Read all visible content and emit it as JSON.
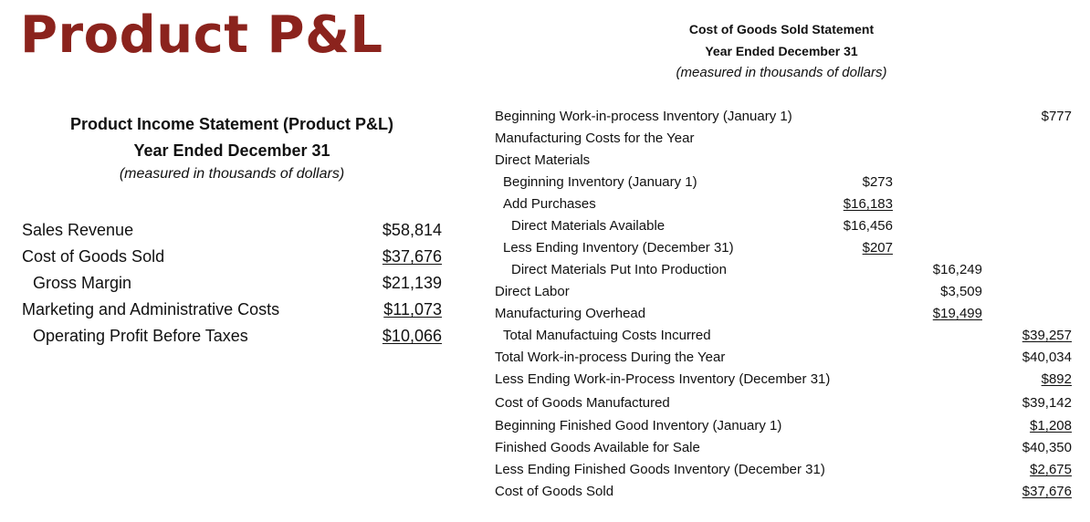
{
  "page_title": "Product P&L",
  "income_statement": {
    "heading": "Product Income Statement (Product P&L)",
    "period": "Year Ended December 31",
    "units": "(measured in thousands of dollars)",
    "rows": [
      {
        "label": "Sales Revenue",
        "amount": "$58,814",
        "indent": false,
        "underline": false
      },
      {
        "label": "Cost of Goods Sold",
        "amount": "$37,676",
        "indent": false,
        "underline": true
      },
      {
        "label": "Gross Margin",
        "amount": "$21,139",
        "indent": true,
        "underline": false
      },
      {
        "label": "Marketing and Administrative Costs",
        "amount": "$11,073",
        "indent": false,
        "underline": true
      },
      {
        "label": "Operating Profit Before Taxes",
        "amount": "$10,066",
        "indent": true,
        "underline": true
      }
    ]
  },
  "cogs_statement": {
    "heading": "Cost of Goods Sold Statement",
    "period": "Year Ended December 31",
    "units": "(measured in thousands of dollars)",
    "rows": [
      {
        "label": "Beginning Work-in-process Inventory (January 1)",
        "indent": 0,
        "col1": "",
        "col2": "",
        "col3": "$777",
        "u1": false,
        "u2": false,
        "u3": false
      },
      {
        "label": "Manufacturing Costs for the Year",
        "indent": 0,
        "col1": "",
        "col2": "",
        "col3": "",
        "u1": false,
        "u2": false,
        "u3": false
      },
      {
        "label": "Direct Materials",
        "indent": 0,
        "col1": "",
        "col2": "",
        "col3": "",
        "u1": false,
        "u2": false,
        "u3": false
      },
      {
        "label": "Beginning Inventory (January 1)",
        "indent": 1,
        "col1": "$273",
        "col2": "",
        "col3": "",
        "u1": false,
        "u2": false,
        "u3": false
      },
      {
        "label": "Add Purchases",
        "indent": 1,
        "col1": "$16,183",
        "col2": "",
        "col3": "",
        "u1": true,
        "u2": false,
        "u3": false
      },
      {
        "label": "Direct Materials Available",
        "indent": 2,
        "col1": "$16,456",
        "col2": "",
        "col3": "",
        "u1": false,
        "u2": false,
        "u3": false
      },
      {
        "label": "Less Ending Inventory (December 31)",
        "indent": 1,
        "col1": "$207",
        "col2": "",
        "col3": "",
        "u1": true,
        "u2": false,
        "u3": false
      },
      {
        "label": "Direct Materials Put Into Production",
        "indent": 2,
        "col1": "",
        "col2": "$16,249",
        "col3": "",
        "u1": false,
        "u2": false,
        "u3": false
      },
      {
        "label": "Direct Labor",
        "indent": 0,
        "col1": "",
        "col2": "$3,509",
        "col3": "",
        "u1": false,
        "u2": false,
        "u3": false
      },
      {
        "label": "Manufacturing Overhead",
        "indent": 0,
        "col1": "",
        "col2": "$19,499",
        "col3": "",
        "u1": false,
        "u2": true,
        "u3": false
      },
      {
        "label": "Total Manufactuing Costs Incurred",
        "indent": 1,
        "col1": "",
        "col2": "",
        "col3": "$39,257",
        "u1": false,
        "u2": false,
        "u3": true
      },
      {
        "label": "Total Work-in-process During the Year",
        "indent": 0,
        "col1": "",
        "col2": "",
        "col3": "$40,034",
        "u1": false,
        "u2": false,
        "u3": false
      },
      {
        "label": "Less Ending Work-in-Process Inventory (December 31)",
        "indent": 0,
        "col1": "",
        "col2": "",
        "col3": "$892",
        "u1": false,
        "u2": false,
        "u3": true
      },
      {
        "label": "Cost of Goods Manufactured",
        "indent": 0,
        "col1": "",
        "col2": "",
        "col3": "$39,142",
        "u1": false,
        "u2": false,
        "u3": false
      },
      {
        "label": "Beginning Finished Good Inventory (January 1)",
        "indent": 0,
        "col1": "",
        "col2": "",
        "col3": "$1,208",
        "u1": false,
        "u2": false,
        "u3": true
      },
      {
        "label": "Finished Goods Available for Sale",
        "indent": 0,
        "col1": "",
        "col2": "",
        "col3": "$40,350",
        "u1": false,
        "u2": false,
        "u3": false
      },
      {
        "label": "Less Ending Finished Goods Inventory (December 31)",
        "indent": 0,
        "col1": "",
        "col2": "",
        "col3": "$2,675",
        "u1": false,
        "u2": false,
        "u3": true
      },
      {
        "label": "Cost of Goods Sold",
        "indent": 0,
        "col1": "",
        "col2": "",
        "col3": "$37,676",
        "u1": false,
        "u2": false,
        "u3": true
      }
    ]
  },
  "colors": {
    "title": "#8b231d",
    "text": "#111111"
  }
}
